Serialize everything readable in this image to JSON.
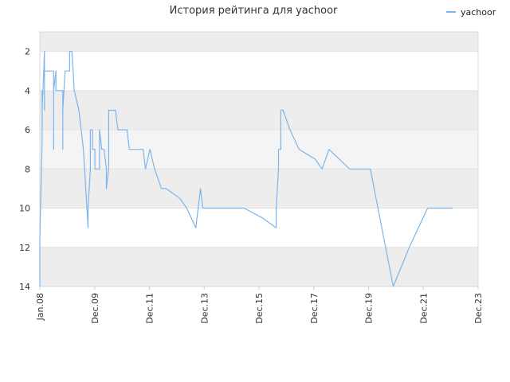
{
  "chart_data": {
    "type": "line",
    "title": "История рейтинга для yachoor",
    "xlabel": "",
    "ylabel": "",
    "legend": {
      "position": "top-right",
      "entries": [
        "yachoor"
      ]
    },
    "y_axis": {
      "reversed": true,
      "ylim": [
        1,
        14
      ],
      "ticks": [
        2,
        4,
        6,
        8,
        10,
        12,
        14
      ]
    },
    "x_axis": {
      "range": [
        "2008-01",
        "2023-12"
      ],
      "ticks": [
        "Jan.08",
        "Dec.09",
        "Dec.11",
        "Dec.13",
        "Dec.15",
        "Dec.17",
        "Dec.19",
        "Dec.21",
        "Dec.23"
      ]
    },
    "grid": true,
    "series": [
      {
        "name": "yachoor",
        "color": "#7cb5ec",
        "points": [
          [
            "2008-01",
            14
          ],
          [
            "2008-01",
            11.5
          ],
          [
            "2008-02",
            6.5
          ],
          [
            "2008-02",
            4
          ],
          [
            "2008-02",
            5
          ],
          [
            "2008-03",
            2
          ],
          [
            "2008-03",
            5
          ],
          [
            "2008-03",
            3
          ],
          [
            "2008-04",
            3
          ],
          [
            "2008-05",
            3
          ],
          [
            "2008-06",
            3
          ],
          [
            "2008-07",
            3
          ],
          [
            "2008-07",
            7
          ],
          [
            "2008-07",
            4
          ],
          [
            "2008-08",
            3
          ],
          [
            "2008-08",
            4
          ],
          [
            "2008-09",
            4
          ],
          [
            "2008-10",
            4
          ],
          [
            "2008-11",
            4
          ],
          [
            "2008-11",
            7
          ],
          [
            "2008-11",
            5
          ],
          [
            "2008-12",
            3
          ],
          [
            "2009-01",
            3
          ],
          [
            "2009-02",
            3
          ],
          [
            "2009-02",
            2
          ],
          [
            "2009-03",
            2
          ],
          [
            "2009-04",
            4
          ],
          [
            "2009-05",
            4.5
          ],
          [
            "2009-06",
            5
          ],
          [
            "2009-08",
            7
          ],
          [
            "2009-09",
            9
          ],
          [
            "2009-10",
            11
          ],
          [
            "2009-10",
            10
          ],
          [
            "2009-11",
            8
          ],
          [
            "2009-11",
            6
          ],
          [
            "2009-12",
            6
          ],
          [
            "2009-12",
            7
          ],
          [
            "2010-01",
            7
          ],
          [
            "2010-01",
            8
          ],
          [
            "2010-02",
            8
          ],
          [
            "2010-03",
            8
          ],
          [
            "2010-03",
            6
          ],
          [
            "2010-04",
            7
          ],
          [
            "2010-05",
            7
          ],
          [
            "2010-06",
            8
          ],
          [
            "2010-06",
            9
          ],
          [
            "2010-07",
            8
          ],
          [
            "2010-07",
            5
          ],
          [
            "2010-08",
            5
          ],
          [
            "2010-09",
            5
          ],
          [
            "2010-10",
            5
          ],
          [
            "2010-11",
            6
          ],
          [
            "2010-12",
            6
          ],
          [
            "2011-01",
            6
          ],
          [
            "2011-02",
            6
          ],
          [
            "2011-03",
            6
          ],
          [
            "2011-04",
            7
          ],
          [
            "2011-06",
            7
          ],
          [
            "2011-09",
            7
          ],
          [
            "2011-10",
            7
          ],
          [
            "2011-11",
            8
          ],
          [
            "2012-01",
            7
          ],
          [
            "2012-03",
            8
          ],
          [
            "2012-06",
            9
          ],
          [
            "2012-08",
            9
          ],
          [
            "2013-02",
            9.5
          ],
          [
            "2013-05",
            10
          ],
          [
            "2013-09",
            11
          ],
          [
            "2013-10",
            10
          ],
          [
            "2013-11",
            9
          ],
          [
            "2013-12",
            10
          ],
          [
            "2014-02",
            10
          ],
          [
            "2014-06",
            10
          ],
          [
            "2015-01",
            10
          ],
          [
            "2015-06",
            10
          ],
          [
            "2016-02",
            10.5
          ],
          [
            "2016-08",
            11
          ],
          [
            "2016-08",
            10
          ],
          [
            "2016-09",
            8
          ],
          [
            "2016-09",
            7
          ],
          [
            "2016-10",
            7
          ],
          [
            "2016-10",
            5
          ],
          [
            "2016-11",
            5
          ],
          [
            "2017-02",
            6
          ],
          [
            "2017-06",
            7
          ],
          [
            "2018-01",
            7.5
          ],
          [
            "2018-04",
            8
          ],
          [
            "2018-07",
            7
          ],
          [
            "2019-04",
            8
          ],
          [
            "2019-08",
            8
          ],
          [
            "2020-01",
            8
          ],
          [
            "2020-06",
            11
          ],
          [
            "2020-11",
            14
          ],
          [
            "2021-06",
            12
          ],
          [
            "2022-02",
            10
          ],
          [
            "2022-08",
            10
          ],
          [
            "2023-01",
            10
          ]
        ]
      }
    ]
  }
}
